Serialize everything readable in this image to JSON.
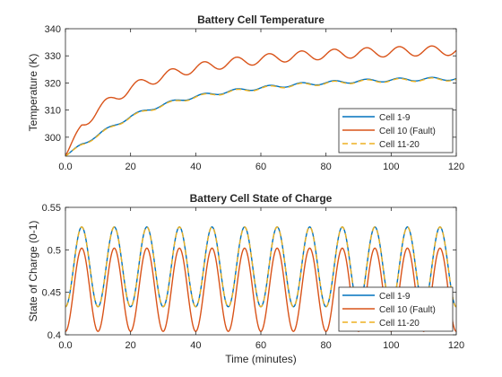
{
  "chart_data": [
    {
      "type": "line",
      "title": "Battery Cell Temperature",
      "xlabel": "",
      "ylabel": "Temperature (K)",
      "xlim": [
        0,
        120
      ],
      "ylim": [
        293,
        340
      ],
      "xticks": [
        0,
        20,
        40,
        60,
        80,
        100,
        120
      ],
      "yticks": [
        300,
        310,
        320,
        330,
        340
      ],
      "legend_position": "lower-right",
      "series": [
        {
          "name": "Cell 1-9",
          "color": "#0072BD",
          "style": "solid",
          "x": [
            0,
            5,
            10,
            15,
            20,
            25,
            30,
            35,
            40,
            45,
            50,
            55,
            60,
            65,
            70,
            75,
            80,
            85,
            90,
            95,
            100,
            105,
            110,
            115,
            120
          ],
          "y": [
            293.0,
            297.5,
            300.8,
            304.4,
            307.6,
            310.0,
            312.0,
            313.7,
            315.0,
            316.0,
            316.8,
            317.6,
            318.2,
            318.8,
            319.3,
            319.7,
            320.1,
            320.4,
            320.7,
            320.9,
            321.1,
            321.3,
            321.4,
            321.5,
            321.6
          ]
        },
        {
          "name": "Cell 10 (Fault)",
          "color": "#D95319",
          "style": "solid",
          "x": [
            0,
            5,
            10,
            15,
            20,
            25,
            30,
            35,
            40,
            45,
            50,
            55,
            60,
            65,
            70,
            75,
            80,
            85,
            90,
            95,
            100,
            105,
            110,
            115,
            120
          ],
          "y": [
            293.0,
            304.5,
            310.0,
            314.5,
            318.0,
            320.5,
            322.5,
            324.2,
            325.5,
            326.5,
            327.3,
            328.1,
            328.7,
            329.3,
            329.8,
            330.2,
            330.5,
            330.8,
            331.1,
            331.3,
            331.5,
            331.7,
            331.8,
            331.9,
            332.0
          ]
        },
        {
          "name": "Cell 11-20",
          "color": "#EDB120",
          "style": "dashed",
          "x": [
            0,
            5,
            10,
            15,
            20,
            25,
            30,
            35,
            40,
            45,
            50,
            55,
            60,
            65,
            70,
            75,
            80,
            85,
            90,
            95,
            100,
            105,
            110,
            115,
            120
          ],
          "y": [
            293.0,
            297.3,
            300.6,
            304.2,
            307.4,
            309.8,
            311.8,
            313.5,
            314.8,
            315.8,
            316.6,
            317.4,
            318.0,
            318.6,
            319.1,
            319.5,
            319.9,
            320.2,
            320.5,
            320.7,
            320.9,
            321.1,
            321.2,
            321.3,
            321.4
          ]
        }
      ]
    },
    {
      "type": "line",
      "title": "Battery Cell State of Charge",
      "xlabel": "Time (minutes)",
      "ylabel": "State of Charge (0-1)",
      "xlim": [
        0,
        120
      ],
      "ylim": [
        0.4,
        0.55
      ],
      "xticks": [
        0,
        20,
        40,
        60,
        80,
        100,
        120
      ],
      "yticks": [
        0.4,
        0.45,
        0.5,
        0.55
      ],
      "legend_position": "lower-right",
      "series": [
        {
          "name": "Cell 1-9",
          "color": "#0072BD",
          "style": "solid",
          "x": [
            0,
            5,
            10,
            15,
            20,
            25,
            30,
            35,
            40,
            45,
            50,
            55,
            60,
            65,
            70,
            75,
            80,
            85,
            90,
            95,
            100,
            105,
            110,
            115,
            120
          ],
          "y": [
            0.433,
            0.527,
            0.433,
            0.527,
            0.433,
            0.527,
            0.433,
            0.527,
            0.433,
            0.527,
            0.433,
            0.527,
            0.433,
            0.527,
            0.433,
            0.527,
            0.433,
            0.527,
            0.433,
            0.527,
            0.433,
            0.527,
            0.433,
            0.527,
            0.433
          ]
        },
        {
          "name": "Cell 10 (Fault)",
          "color": "#D95319",
          "style": "solid",
          "x": [
            0,
            5,
            10,
            15,
            20,
            25,
            30,
            35,
            40,
            45,
            50,
            55,
            60,
            65,
            70,
            75,
            80,
            85,
            90,
            95,
            100,
            105,
            110,
            115,
            120
          ],
          "y": [
            0.404,
            0.502,
            0.404,
            0.502,
            0.404,
            0.502,
            0.404,
            0.502,
            0.404,
            0.502,
            0.404,
            0.502,
            0.404,
            0.502,
            0.404,
            0.502,
            0.404,
            0.502,
            0.404,
            0.502,
            0.404,
            0.502,
            0.404,
            0.502,
            0.404
          ]
        },
        {
          "name": "Cell 11-20",
          "color": "#EDB120",
          "style": "dashed",
          "x": [
            0,
            5,
            10,
            15,
            20,
            25,
            30,
            35,
            40,
            45,
            50,
            55,
            60,
            65,
            70,
            75,
            80,
            85,
            90,
            95,
            100,
            105,
            110,
            115,
            120
          ],
          "y": [
            0.433,
            0.527,
            0.433,
            0.527,
            0.433,
            0.527,
            0.433,
            0.527,
            0.433,
            0.527,
            0.433,
            0.527,
            0.433,
            0.527,
            0.433,
            0.527,
            0.433,
            0.527,
            0.433,
            0.527,
            0.433,
            0.527,
            0.433,
            0.527,
            0.433
          ]
        }
      ]
    }
  ]
}
